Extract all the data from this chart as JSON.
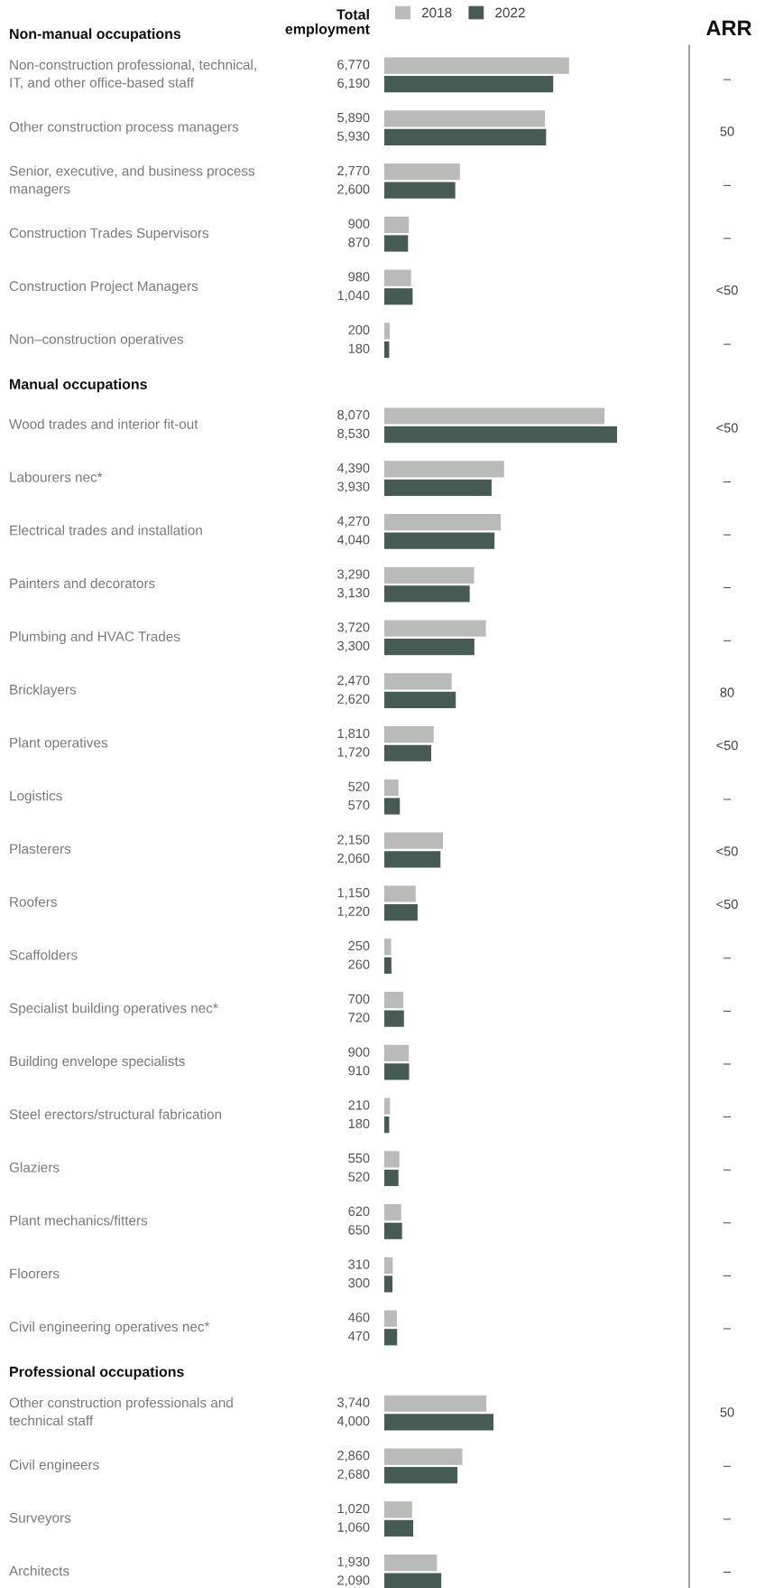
{
  "chart_data": [
    {
      "type": "bar",
      "orientation": "horizontal",
      "title": "Total employment",
      "legend": "top left",
      "categories": [
        "Non-manual occupations",
        "Non-construction professional, technical,\nIT, and other office-based staff",
        "Other construction process managers",
        "Senior, executive, and business process\nmanagers",
        "Construction Trades Supervisors",
        "Construction Project Managers",
        "Non–construction operatives",
        "Manual occupations",
        "Wood trades and interior fit-out",
        "Labourers nec*",
        "Electrical trades and installation",
        "Painters and decorators",
        "Plumbing and HVAC Trades",
        "Bricklayers",
        "Plant operatives",
        "Logistics",
        "Plasterers",
        "Roofers",
        "Scaffolders",
        "Specialist building operatives nec*",
        "Building envelope specialists",
        "Steel erectors/structural fabrication",
        "Glaziers",
        "Plant mechanics/fitters",
        "Floorers",
        "Civil engineering operatives nec*",
        "Professional occupations",
        "Other construction professionals and\ntechnical staff",
        "Civil engineers",
        "Surveyors",
        "Architects"
      ],
      "series": [
        {
          "name": "2018",
          "color": "#b9bbb9",
          "values": [
            null,
            6770,
            5890,
            2770,
            900,
            980,
            200,
            null,
            8070,
            4390,
            4270,
            3290,
            3720,
            2470,
            1810,
            520,
            2150,
            1150,
            250,
            700,
            900,
            210,
            550,
            620,
            310,
            460,
            null,
            3740,
            2860,
            1020,
            1930
          ],
          "value_labels": [
            null,
            "6,770",
            "5,890",
            "2,770",
            "900",
            "980",
            "200",
            null,
            "8,070",
            "4,390",
            "4,270",
            "3,290",
            "3,720",
            "2,470",
            "1,810",
            "520",
            "2,150",
            "1,150",
            "250",
            "700",
            "900",
            "210",
            "550",
            "620",
            "310",
            "460",
            null,
            "3,740",
            "2,860",
            "1,020",
            "1,930"
          ]
        },
        {
          "name": "2022",
          "color": "#465b53",
          "values": [
            null,
            6190,
            5930,
            2600,
            870,
            1040,
            180,
            null,
            8530,
            3930,
            4040,
            3130,
            3300,
            2620,
            1720,
            570,
            2060,
            1220,
            260,
            720,
            910,
            180,
            520,
            650,
            300,
            470,
            null,
            4000,
            2680,
            1060,
            2090
          ],
          "value_labels": [
            null,
            "6,190",
            "5,930",
            "2,600",
            "870",
            "1,040",
            "180",
            null,
            "8,530",
            "3,930",
            "4,040",
            "3,130",
            "3,300",
            "2,620",
            "1,720",
            "570",
            "2,060",
            "1,220",
            "260",
            "720",
            "910",
            "180",
            "520",
            "650",
            "300",
            "470",
            null,
            "4,000",
            "2,680",
            "1,060",
            "2,090"
          ]
        }
      ]
    },
    {
      "type": "other",
      "title": "ARR",
      "annotations": [
        "–",
        "50",
        "–",
        "–",
        "<50",
        "–",
        "<50",
        "–",
        "–",
        "–",
        "–",
        "80",
        "<50",
        "–",
        "<50",
        "<50",
        "–",
        "–",
        "–",
        "–",
        "–",
        "–",
        "–",
        "–",
        "50",
        "–",
        "–",
        "–"
      ]
    }
  ]
}
